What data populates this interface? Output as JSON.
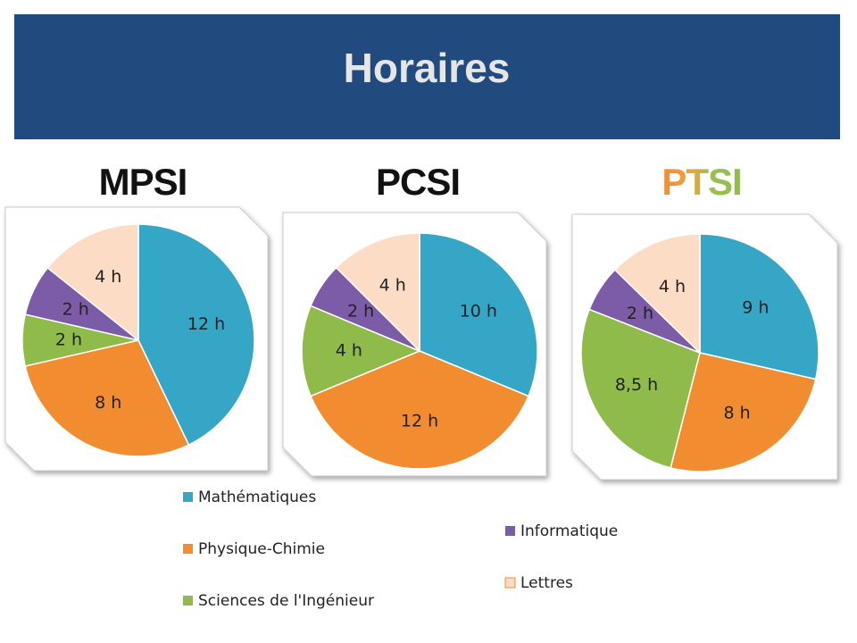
{
  "title": "Horaires",
  "chart_data": [
    {
      "type": "pie",
      "title": "MPSI",
      "categories": [
        "Mathématiques",
        "Physique-Chimie",
        "Sciences de l'Ingénieur",
        "Informatique",
        "Lettres"
      ],
      "values": [
        12,
        8,
        2,
        2,
        4
      ],
      "value_labels": [
        "12 h",
        "8 h",
        "2 h",
        "2 h",
        "4 h"
      ],
      "colors": [
        "#35a6c6",
        "#f28c30",
        "#8fbb4b",
        "#7c5ba7",
        "#fcdcc4"
      ]
    },
    {
      "type": "pie",
      "title": "PCSI",
      "categories": [
        "Mathématiques",
        "Physique-Chimie",
        "Sciences de l'Ingénieur",
        "Informatique",
        "Lettres"
      ],
      "values": [
        10,
        12,
        4,
        2,
        4
      ],
      "value_labels": [
        "10 h",
        "12 h",
        "4 h",
        "2 h",
        "4 h"
      ],
      "colors": [
        "#35a6c6",
        "#f28c30",
        "#8fbb4b",
        "#7c5ba7",
        "#fcdcc4"
      ]
    },
    {
      "type": "pie",
      "title": "PTSI",
      "categories": [
        "Mathématiques",
        "Physique-Chimie",
        "Sciences de l'Ingénieur",
        "Informatique",
        "Lettres"
      ],
      "values": [
        9,
        8,
        8.5,
        2,
        4
      ],
      "value_labels": [
        "9 h",
        "8 h",
        "8,5 h",
        "2 h",
        "4 h"
      ],
      "colors": [
        "#35a6c6",
        "#f28c30",
        "#8fbb4b",
        "#7c5ba7",
        "#fcdcc4"
      ]
    }
  ]
}
